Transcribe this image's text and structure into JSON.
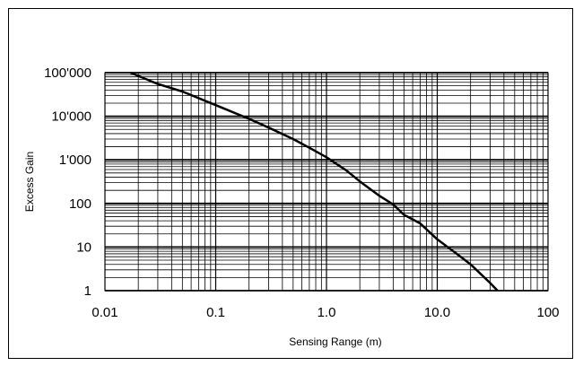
{
  "chart_data": {
    "type": "line",
    "title": "",
    "xlabel": "Sensing Range (m)",
    "ylabel": "Excess Gain",
    "x_scale": "log",
    "y_scale": "log",
    "xlim": [
      0.01,
      100
    ],
    "ylim": [
      1,
      100000
    ],
    "grid": true,
    "legend": "none",
    "x_ticks": [
      {
        "value": 0.01,
        "label": "0.01"
      },
      {
        "value": 0.1,
        "label": "0.1"
      },
      {
        "value": 1,
        "label": "1.0"
      },
      {
        "value": 10,
        "label": "10.0"
      },
      {
        "value": 100,
        "label": "100"
      }
    ],
    "y_ticks": [
      {
        "value": 1,
        "label": "1"
      },
      {
        "value": 10,
        "label": "10"
      },
      {
        "value": 100,
        "label": "100"
      },
      {
        "value": 1000,
        "label": "1'000"
      },
      {
        "value": 10000,
        "label": "10'000"
      },
      {
        "value": 100000,
        "label": "100'000"
      }
    ],
    "series": [
      {
        "color": "#000000",
        "points": [
          {
            "x": 0.017,
            "y": 100000
          },
          {
            "x": 0.03,
            "y": 55000
          },
          {
            "x": 0.05,
            "y": 37000
          },
          {
            "x": 0.1,
            "y": 18000
          },
          {
            "x": 0.2,
            "y": 8700
          },
          {
            "x": 0.3,
            "y": 5500
          },
          {
            "x": 0.5,
            "y": 3000
          },
          {
            "x": 0.7,
            "y": 1900
          },
          {
            "x": 1.0,
            "y": 1150
          },
          {
            "x": 1.5,
            "y": 580
          },
          {
            "x": 2.0,
            "y": 320
          },
          {
            "x": 3.0,
            "y": 150
          },
          {
            "x": 4.0,
            "y": 95
          },
          {
            "x": 5.0,
            "y": 55
          },
          {
            "x": 7.0,
            "y": 35
          },
          {
            "x": 10.0,
            "y": 15
          },
          {
            "x": 15.0,
            "y": 7
          },
          {
            "x": 20.0,
            "y": 4
          },
          {
            "x": 30.0,
            "y": 1.5
          },
          {
            "x": 35.0,
            "y": 1
          }
        ]
      }
    ]
  }
}
